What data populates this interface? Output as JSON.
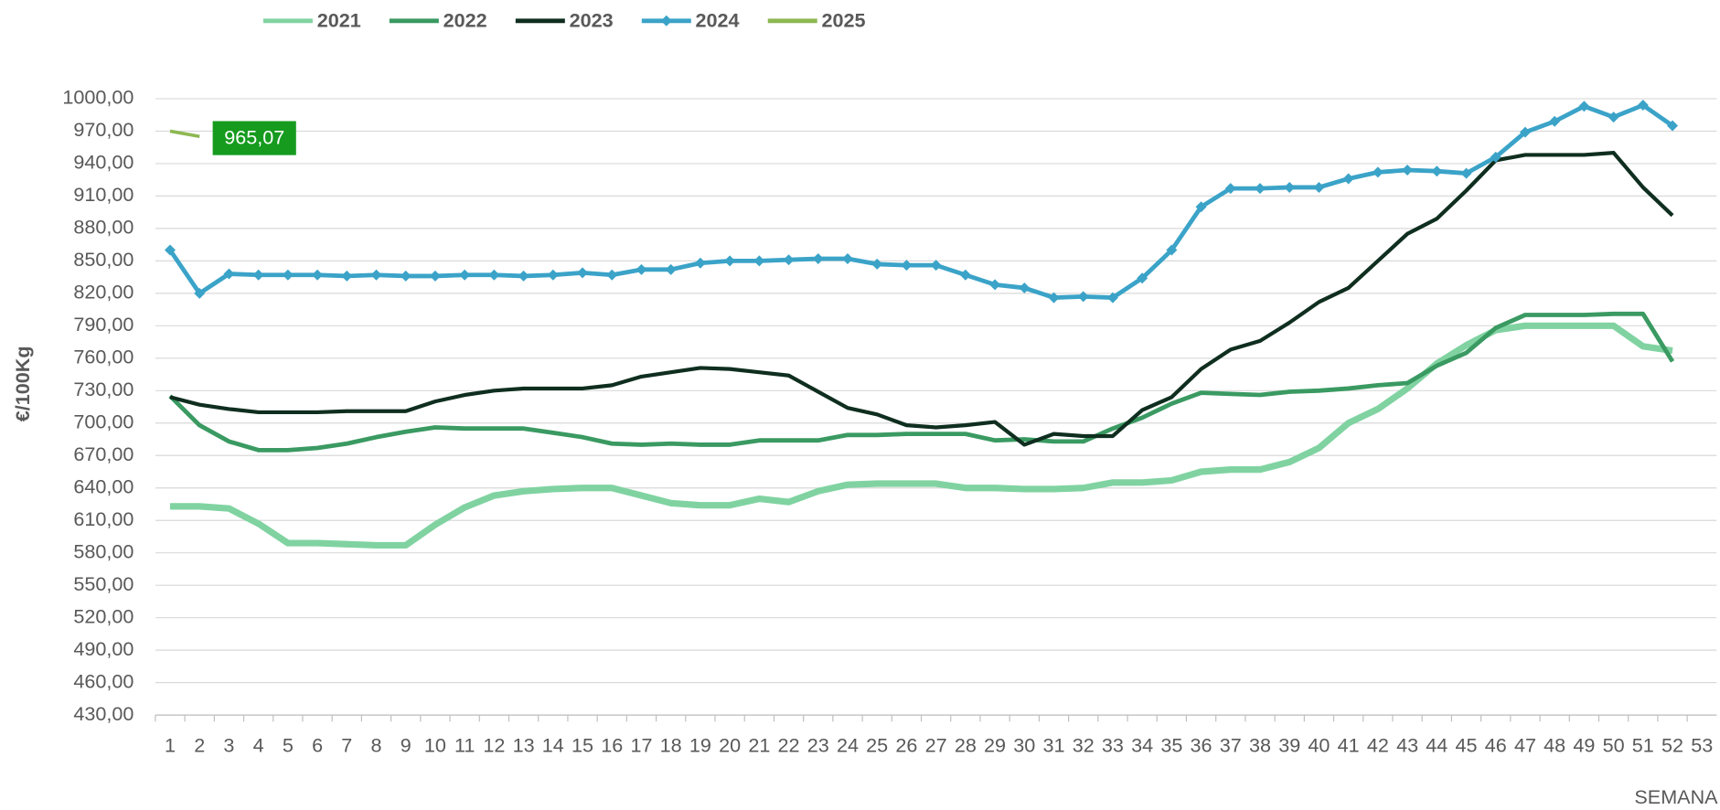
{
  "chart_data": {
    "type": "line",
    "y_label": "€/100Kg",
    "x_label": "SEMANA",
    "categories": [
      "1",
      "2",
      "3",
      "4",
      "5",
      "6",
      "7",
      "8",
      "9",
      "10",
      "11",
      "12",
      "13",
      "14",
      "15",
      "16",
      "17",
      "18",
      "19",
      "20",
      "21",
      "22",
      "23",
      "24",
      "25",
      "26",
      "27",
      "28",
      "29",
      "30",
      "31",
      "32",
      "33",
      "34",
      "35",
      "36",
      "37",
      "38",
      "39",
      "40",
      "41",
      "42",
      "43",
      "44",
      "45",
      "46",
      "47",
      "48",
      "49",
      "50",
      "51",
      "52",
      "53"
    ],
    "ylim": [
      430,
      1000
    ],
    "yticks": [
      {
        "value": 430,
        "label": "430,00"
      },
      {
        "value": 460,
        "label": "460,00"
      },
      {
        "value": 490,
        "label": "490,00"
      },
      {
        "value": 520,
        "label": "520,00"
      },
      {
        "value": 550,
        "label": "550,00"
      },
      {
        "value": 580,
        "label": "580,00"
      },
      {
        "value": 610,
        "label": "610,00"
      },
      {
        "value": 640,
        "label": "640,00"
      },
      {
        "value": 670,
        "label": "670,00"
      },
      {
        "value": 700,
        "label": "700,00"
      },
      {
        "value": 730,
        "label": "730,00"
      },
      {
        "value": 760,
        "label": "760,00"
      },
      {
        "value": 790,
        "label": "790,00"
      },
      {
        "value": 820,
        "label": "820,00"
      },
      {
        "value": 850,
        "label": "850,00"
      },
      {
        "value": 880,
        "label": "880,00"
      },
      {
        "value": 910,
        "label": "910,00"
      },
      {
        "value": 940,
        "label": "940,00"
      },
      {
        "value": 970,
        "label": "970,00"
      },
      {
        "value": 1000,
        "label": "1000,00"
      }
    ],
    "grid": true,
    "legend": "top",
    "series": [
      {
        "name": "2021",
        "color": "#80d3a1",
        "values": [
          623,
          623,
          621,
          607,
          589,
          589,
          588,
          587,
          587,
          606,
          622,
          633,
          637,
          639,
          640,
          640,
          633,
          626,
          624,
          624,
          630,
          627,
          637,
          643,
          644,
          644,
          644,
          640,
          640,
          639,
          639,
          640,
          645,
          645,
          647,
          655,
          657,
          657,
          664,
          677,
          700,
          713,
          732,
          755,
          772,
          786,
          790,
          790,
          790,
          790,
          771,
          767,
          null
        ]
      },
      {
        "name": "2022",
        "color": "#3a9a62",
        "values": [
          725,
          698,
          683,
          675,
          675,
          677,
          681,
          687,
          692,
          696,
          695,
          695,
          695,
          691,
          687,
          681,
          680,
          681,
          680,
          680,
          684,
          684,
          684,
          689,
          689,
          690,
          690,
          690,
          684,
          685,
          683,
          683,
          695,
          705,
          718,
          728,
          727,
          726,
          729,
          730,
          732,
          735,
          737,
          753,
          765,
          788,
          800,
          800,
          800,
          801,
          801,
          757,
          null
        ]
      },
      {
        "name": "2023",
        "color": "#0f2e1f",
        "values": [
          724,
          717,
          713,
          710,
          710,
          710,
          711,
          711,
          711,
          720,
          726,
          730,
          732,
          732,
          732,
          735,
          743,
          747,
          751,
          750,
          747,
          744,
          729,
          714,
          708,
          698,
          696,
          698,
          701,
          680,
          690,
          688,
          688,
          712,
          724,
          750,
          768,
          776,
          793,
          812,
          825,
          850,
          875,
          889,
          915,
          943,
          948,
          948,
          948,
          950,
          918,
          892,
          null
        ]
      },
      {
        "name": "2024",
        "color": "#3ba3c8",
        "marker": "diamond",
        "values": [
          860,
          820,
          838,
          837,
          837,
          837,
          836,
          837,
          836,
          836,
          837,
          837,
          836,
          837,
          839,
          837,
          842,
          842,
          848,
          850,
          850,
          851,
          852,
          852,
          847,
          846,
          846,
          837,
          828,
          825,
          816,
          817,
          816,
          834,
          860,
          900,
          917,
          917,
          918,
          918,
          926,
          932,
          934,
          933,
          931,
          946,
          969,
          979,
          993,
          983,
          994,
          975,
          null
        ]
      },
      {
        "name": "2025",
        "color": "#8db852",
        "values": [
          970,
          965.07,
          null,
          null,
          null,
          null,
          null,
          null,
          null,
          null,
          null,
          null,
          null,
          null,
          null,
          null,
          null,
          null,
          null,
          null,
          null,
          null,
          null,
          null,
          null,
          null,
          null,
          null,
          null,
          null,
          null,
          null,
          null,
          null,
          null,
          null,
          null,
          null,
          null,
          null,
          null,
          null,
          null,
          null,
          null,
          null,
          null,
          null,
          null,
          null,
          null,
          null,
          null
        ],
        "value_labels": [
          null,
          "965,07",
          null,
          null,
          null,
          null,
          null,
          null,
          null,
          null,
          null,
          null,
          null,
          null,
          null,
          null,
          null,
          null,
          null,
          null,
          null,
          null,
          null,
          null,
          null,
          null,
          null,
          null,
          null,
          null,
          null,
          null,
          null,
          null,
          null,
          null,
          null,
          null,
          null,
          null,
          null,
          null,
          null,
          null,
          null,
          null,
          null,
          null,
          null,
          null,
          null,
          null,
          null
        ]
      }
    ]
  }
}
